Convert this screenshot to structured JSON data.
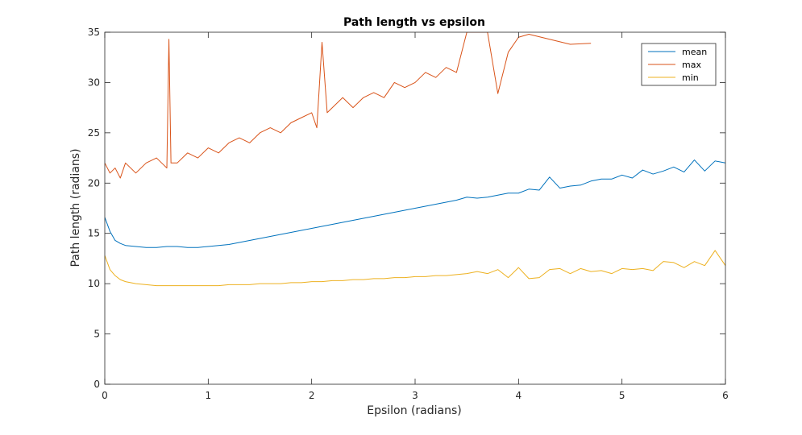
{
  "window": {
    "title": "Path length vs epsilon"
  },
  "chart_data": {
    "type": "line",
    "title": "Path length vs epsilon",
    "xlabel": "Epsilon (radians)",
    "ylabel": "Path length (radians)",
    "xlim": [
      0,
      6
    ],
    "ylim": [
      0,
      35
    ],
    "xticks": [
      0,
      1,
      2,
      3,
      4,
      5,
      6
    ],
    "yticks": [
      0,
      5,
      10,
      15,
      20,
      25,
      30,
      35
    ],
    "grid": false,
    "box": true,
    "legend_placement": "top-right",
    "series": [
      {
        "name": "mean",
        "color": "#0072BD",
        "x": [
          0.0,
          0.05,
          0.1,
          0.15,
          0.2,
          0.3,
          0.4,
          0.5,
          0.6,
          0.7,
          0.8,
          0.9,
          1.0,
          1.1,
          1.2,
          1.3,
          1.4,
          1.5,
          1.6,
          1.7,
          1.8,
          1.9,
          2.0,
          2.1,
          2.2,
          2.3,
          2.4,
          2.5,
          2.6,
          2.7,
          2.8,
          2.9,
          3.0,
          3.1,
          3.2,
          3.3,
          3.4,
          3.5,
          3.6,
          3.7,
          3.8,
          3.9,
          4.0,
          4.1,
          4.2,
          4.3,
          4.4,
          4.5,
          4.6,
          4.7,
          4.8,
          4.9,
          5.0,
          5.1,
          5.2,
          5.3,
          5.4,
          5.5,
          5.6,
          5.7,
          5.8,
          5.9,
          6.0
        ],
        "values": [
          16.6,
          15.2,
          14.3,
          14.0,
          13.8,
          13.7,
          13.6,
          13.6,
          13.7,
          13.7,
          13.6,
          13.6,
          13.7,
          13.8,
          13.9,
          14.1,
          14.3,
          14.5,
          14.7,
          14.9,
          15.1,
          15.3,
          15.5,
          15.7,
          15.9,
          16.1,
          16.3,
          16.5,
          16.7,
          16.9,
          17.1,
          17.3,
          17.5,
          17.7,
          17.9,
          18.1,
          18.3,
          18.6,
          18.5,
          18.6,
          18.8,
          19.0,
          19.0,
          19.4,
          19.3,
          20.6,
          19.5,
          19.7,
          19.8,
          20.2,
          20.4,
          20.4,
          20.8,
          20.5,
          21.3,
          20.9,
          21.2,
          21.6,
          21.1,
          22.3,
          21.2,
          22.2,
          22.0
        ]
      },
      {
        "name": "max",
        "color": "#D95319",
        "x": [
          0.0,
          0.05,
          0.1,
          0.15,
          0.2,
          0.3,
          0.4,
          0.5,
          0.6,
          0.62,
          0.64,
          0.7,
          0.8,
          0.9,
          1.0,
          1.1,
          1.2,
          1.3,
          1.4,
          1.5,
          1.6,
          1.7,
          1.8,
          1.9,
          2.0,
          2.05,
          2.1,
          2.15,
          2.2,
          2.3,
          2.4,
          2.5,
          2.6,
          2.7,
          2.8,
          2.9,
          3.0,
          3.1,
          3.2,
          3.3,
          3.4,
          3.5,
          3.6,
          3.7,
          3.8,
          3.9,
          4.0,
          4.1,
          4.5,
          4.7
        ],
        "values": [
          22.0,
          21.0,
          21.5,
          20.5,
          22.0,
          21.0,
          22.0,
          22.5,
          21.5,
          34.3,
          22.0,
          22.0,
          23.0,
          22.5,
          23.5,
          23.0,
          24.0,
          24.5,
          24.0,
          25.0,
          25.5,
          25.0,
          26.0,
          26.5,
          27.0,
          25.5,
          34.0,
          27.0,
          27.5,
          28.5,
          27.5,
          28.5,
          29.0,
          28.5,
          30.0,
          29.5,
          30.0,
          31.0,
          30.5,
          31.5,
          31.0,
          35.0,
          35.0,
          35.0,
          28.9,
          33.0,
          34.5,
          34.8,
          33.8,
          33.9
        ]
      },
      {
        "name": "min",
        "color": "#EDB120",
        "x": [
          0.0,
          0.05,
          0.1,
          0.15,
          0.2,
          0.3,
          0.4,
          0.5,
          0.6,
          0.7,
          0.8,
          0.9,
          1.0,
          1.1,
          1.2,
          1.3,
          1.4,
          1.5,
          1.6,
          1.7,
          1.8,
          1.9,
          2.0,
          2.1,
          2.2,
          2.3,
          2.4,
          2.5,
          2.6,
          2.7,
          2.8,
          2.9,
          3.0,
          3.1,
          3.2,
          3.3,
          3.4,
          3.5,
          3.6,
          3.7,
          3.8,
          3.9,
          4.0,
          4.1,
          4.2,
          4.3,
          4.4,
          4.5,
          4.6,
          4.7,
          4.8,
          4.9,
          5.0,
          5.1,
          5.2,
          5.3,
          5.4,
          5.5,
          5.6,
          5.7,
          5.8,
          5.9,
          6.0
        ],
        "values": [
          12.8,
          11.4,
          10.8,
          10.4,
          10.2,
          10.0,
          9.9,
          9.8,
          9.8,
          9.8,
          9.8,
          9.8,
          9.8,
          9.8,
          9.9,
          9.9,
          9.9,
          10.0,
          10.0,
          10.0,
          10.1,
          10.1,
          10.2,
          10.2,
          10.3,
          10.3,
          10.4,
          10.4,
          10.5,
          10.5,
          10.6,
          10.6,
          10.7,
          10.7,
          10.8,
          10.8,
          10.9,
          11.0,
          11.2,
          11.0,
          11.4,
          10.6,
          11.6,
          10.5,
          10.6,
          11.4,
          11.5,
          11.0,
          11.5,
          11.2,
          11.3,
          11.0,
          11.5,
          11.4,
          11.5,
          11.3,
          12.2,
          12.1,
          11.6,
          12.2,
          11.8,
          13.3,
          11.8
        ]
      }
    ]
  }
}
